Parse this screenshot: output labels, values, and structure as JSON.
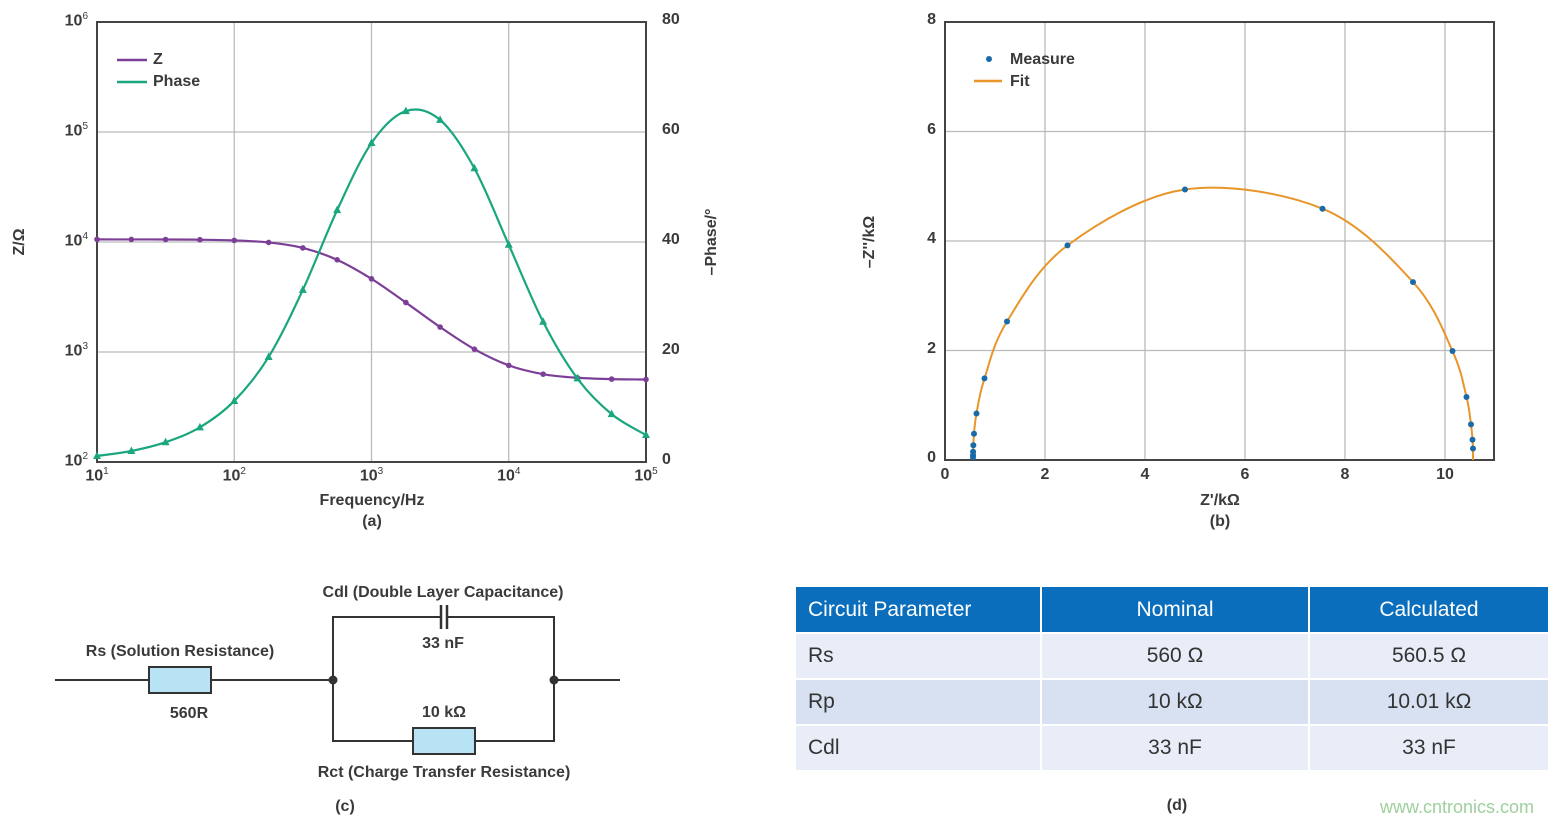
{
  "chart_data": [
    {
      "type": "line",
      "label": "(a)",
      "xlabel": "Frequency/Hz",
      "ylabel": "Z/Ω",
      "y2label": "–Phase/°",
      "xscale": "log",
      "xlim": [
        10,
        100000
      ],
      "yscale": "log",
      "ylim": [
        100,
        1000000
      ],
      "y2lim": [
        0,
        80
      ],
      "grid": true,
      "legend": "top-left",
      "xticks": [
        {
          "b": "10",
          "e": "1"
        },
        {
          "b": "10",
          "e": "2"
        },
        {
          "b": "10",
          "e": "3"
        },
        {
          "b": "10",
          "e": "4"
        },
        {
          "b": "10",
          "e": "5"
        }
      ],
      "yticks": [
        {
          "b": "10",
          "e": "6"
        },
        {
          "b": "10",
          "e": "5"
        },
        {
          "b": "10",
          "e": "4"
        },
        {
          "b": "10",
          "e": "3"
        },
        {
          "b": "10",
          "e": "2"
        }
      ],
      "y2ticks": [
        "80",
        "60",
        "40",
        "20",
        "0"
      ],
      "x": [
        10,
        17.8,
        31.6,
        56.2,
        100,
        178,
        316,
        562,
        1000,
        1780,
        3160,
        5620,
        10000,
        17800,
        31600,
        56200,
        100000
      ],
      "series": [
        {
          "name": "Z",
          "color": "#7b3f98",
          "marker": "circle",
          "axis": "left",
          "values": [
            10558,
            10552,
            10537,
            10489,
            10341,
            9910,
            8837,
            6887,
            4625,
            2816,
            1686,
            1061,
            756,
            629,
            583,
            567,
            562
          ]
        },
        {
          "name": "Phase",
          "color": "#1aa67e",
          "marker": "triangle",
          "axis": "right",
          "values": [
            1.1,
            2.0,
            3.6,
            6.3,
            11.1,
            19.1,
            31.3,
            45.8,
            58.0,
            63.8,
            62.2,
            53.4,
            39.5,
            25.5,
            15.2,
            8.7,
            4.9
          ]
        }
      ]
    },
    {
      "type": "scatter",
      "label": "(b)",
      "xlabel": "Z'/kΩ",
      "ylabel": "–Z''/kΩ",
      "xlim": [
        0,
        11
      ],
      "ylim": [
        0,
        8
      ],
      "grid": true,
      "legend": "top-left",
      "xticks": [
        "0",
        "2",
        "4",
        "6",
        "8",
        "10"
      ],
      "yticks": [
        "8",
        "6",
        "4",
        "2",
        "0"
      ],
      "series": [
        {
          "name": "Measure",
          "color": "#1a6aa8",
          "marker": "dot",
          "x": [
            10.56,
            10.55,
            10.52,
            10.43,
            10.15,
            9.36,
            7.55,
            4.8,
            2.45,
            1.24,
            0.79,
            0.63,
            0.58,
            0.567,
            0.562,
            0.561,
            0.56
          ],
          "y": [
            0.21,
            0.37,
            0.65,
            1.15,
            1.99,
            3.25,
            4.59,
            4.94,
            3.92,
            2.53,
            1.49,
            0.85,
            0.48,
            0.27,
            0.15,
            0.09,
            0.05
          ]
        },
        {
          "name": "Fit",
          "color": "#e8952a",
          "marker": "line"
        }
      ]
    }
  ],
  "circuit": {
    "label": "(c)",
    "rs_label": "Rs (Solution Resistance)",
    "rs_value": "560R",
    "cdl_label": "Cdl (Double Layer Capacitance)",
    "cdl_value": "33 nF",
    "rct_label": "Rct (Charge Transfer Resistance)",
    "rct_value": "10 kΩ",
    "resistor_color": "#b7e3f5"
  },
  "table": {
    "label": "(d)",
    "headers": [
      "Circuit Parameter",
      "Nominal",
      "Calculated"
    ],
    "rows": [
      [
        "Rs",
        "560 Ω",
        "560.5 Ω"
      ],
      [
        "Rp",
        "10 kΩ",
        "10.01 kΩ"
      ],
      [
        "Cdl",
        "33 nF",
        "33 nF"
      ]
    ],
    "header_color": "#0a6ebd"
  },
  "watermark": "www.cntronics.com"
}
